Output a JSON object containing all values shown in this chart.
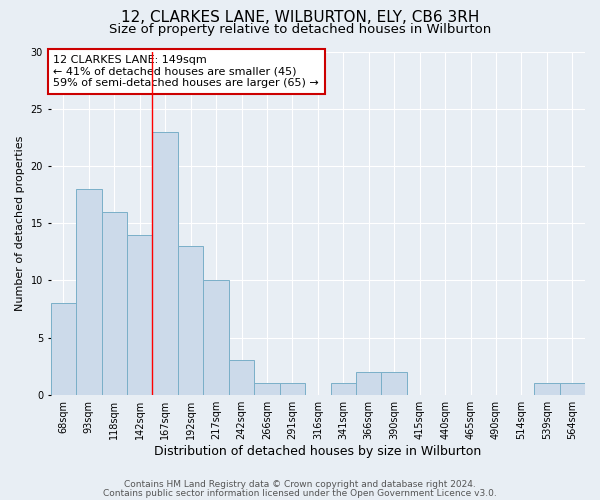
{
  "title": "12, CLARKES LANE, WILBURTON, ELY, CB6 3RH",
  "subtitle": "Size of property relative to detached houses in Wilburton",
  "xlabel": "Distribution of detached houses by size in Wilburton",
  "ylabel": "Number of detached properties",
  "categories": [
    "68sqm",
    "93sqm",
    "118sqm",
    "142sqm",
    "167sqm",
    "192sqm",
    "217sqm",
    "242sqm",
    "266sqm",
    "291sqm",
    "316sqm",
    "341sqm",
    "366sqm",
    "390sqm",
    "415sqm",
    "440sqm",
    "465sqm",
    "490sqm",
    "514sqm",
    "539sqm",
    "564sqm"
  ],
  "values": [
    8,
    18,
    16,
    14,
    23,
    13,
    10,
    3,
    1,
    1,
    0,
    1,
    2,
    2,
    0,
    0,
    0,
    0,
    0,
    1,
    1
  ],
  "bar_color": "#ccdaea",
  "bar_edge_color": "#7aafc8",
  "ylim": [
    0,
    30
  ],
  "yticks": [
    0,
    5,
    10,
    15,
    20,
    25,
    30
  ],
  "annotation_box_text": "12 CLARKES LANE: 149sqm\n← 41% of detached houses are smaller (45)\n59% of semi-detached houses are larger (65) →",
  "annotation_box_color": "#ffffff",
  "annotation_box_edge_color": "#cc0000",
  "red_line_x": 3.5,
  "footer_line1": "Contains HM Land Registry data © Crown copyright and database right 2024.",
  "footer_line2": "Contains public sector information licensed under the Open Government Licence v3.0.",
  "background_color": "#e8eef4",
  "plot_bg_color": "#e8eef4",
  "grid_color": "#ffffff",
  "title_fontsize": 11,
  "subtitle_fontsize": 9.5,
  "xlabel_fontsize": 9,
  "ylabel_fontsize": 8,
  "tick_fontsize": 7,
  "annotation_fontsize": 8,
  "footer_fontsize": 6.5
}
